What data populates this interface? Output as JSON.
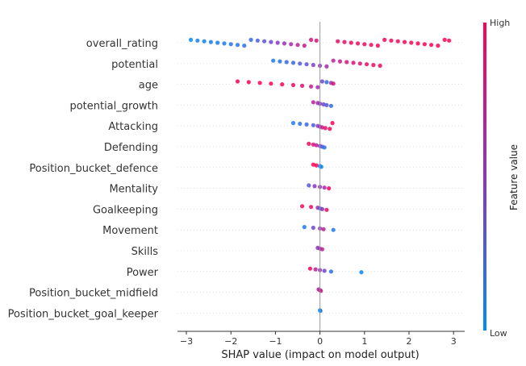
{
  "chart_data": {
    "type": "scatter",
    "subtype": "shap-beeswarm-summary",
    "xlabel": "SHAP value (impact on model output)",
    "xlim": [
      -3.2,
      3.25
    ],
    "xticks": [
      -3,
      -2,
      -1,
      0,
      1,
      2,
      3
    ],
    "colorbar": {
      "title": "Feature value",
      "high_label": "High",
      "low_label": "Low",
      "high_color": "#ff0052",
      "low_color": "#008bfb"
    },
    "features": [
      {
        "name": "overall_rating",
        "points": [
          [
            -2.9,
            0.0
          ],
          [
            -2.75,
            0.05
          ],
          [
            -2.6,
            0.05
          ],
          [
            -2.45,
            0.08
          ],
          [
            -2.3,
            0.08
          ],
          [
            -2.15,
            0.1
          ],
          [
            -2.0,
            0.12
          ],
          [
            -1.85,
            0.12
          ],
          [
            -1.7,
            0.15
          ],
          [
            -1.55,
            0.2
          ],
          [
            -1.4,
            0.25
          ],
          [
            -1.25,
            0.32
          ],
          [
            -1.1,
            0.4
          ],
          [
            -0.95,
            0.48
          ],
          [
            -0.8,
            0.55
          ],
          [
            -0.65,
            0.62
          ],
          [
            -0.5,
            0.68
          ],
          [
            -0.35,
            0.75
          ],
          [
            -0.2,
            0.8
          ],
          [
            -0.08,
            0.85
          ],
          [
            0.4,
            0.9
          ],
          [
            0.55,
            0.92
          ],
          [
            0.7,
            0.93
          ],
          [
            0.85,
            0.94
          ],
          [
            1.0,
            0.95
          ],
          [
            1.15,
            0.95
          ],
          [
            1.3,
            0.96
          ],
          [
            1.45,
            0.96
          ],
          [
            1.6,
            0.97
          ],
          [
            1.75,
            0.97
          ],
          [
            1.9,
            0.98
          ],
          [
            2.05,
            0.98
          ],
          [
            2.2,
            0.98
          ],
          [
            2.35,
            0.99
          ],
          [
            2.5,
            0.99
          ],
          [
            2.65,
            0.99
          ],
          [
            2.8,
            1.0
          ],
          [
            2.9,
            1.0
          ]
        ]
      },
      {
        "name": "potential",
        "points": [
          [
            -1.05,
            0.1
          ],
          [
            -0.9,
            0.15
          ],
          [
            -0.75,
            0.18
          ],
          [
            -0.6,
            0.22
          ],
          [
            -0.45,
            0.28
          ],
          [
            -0.3,
            0.35
          ],
          [
            -0.15,
            0.42
          ],
          [
            0.0,
            0.5
          ],
          [
            0.15,
            0.6
          ],
          [
            0.3,
            0.68
          ],
          [
            0.45,
            0.75
          ],
          [
            0.6,
            0.8
          ],
          [
            0.75,
            0.85
          ],
          [
            0.9,
            0.88
          ],
          [
            1.05,
            0.9
          ],
          [
            1.2,
            0.93
          ],
          [
            1.35,
            0.95
          ]
        ]
      },
      {
        "name": "age",
        "points": [
          [
            -1.85,
            1.0
          ],
          [
            -1.6,
            1.0
          ],
          [
            -1.35,
            1.0
          ],
          [
            -1.1,
            0.98
          ],
          [
            -0.85,
            0.96
          ],
          [
            -0.6,
            0.92
          ],
          [
            -0.4,
            0.85
          ],
          [
            -0.2,
            0.75
          ],
          [
            -0.05,
            0.6
          ],
          [
            0.05,
            0.4
          ],
          [
            0.15,
            0.2
          ],
          [
            0.25,
            0.5
          ],
          [
            0.3,
            0.85
          ]
        ]
      },
      {
        "name": "potential_growth",
        "points": [
          [
            -0.15,
            0.7
          ],
          [
            -0.05,
            0.6
          ],
          [
            0.0,
            0.5
          ],
          [
            0.08,
            0.4
          ],
          [
            0.15,
            0.3
          ],
          [
            0.25,
            0.2
          ]
        ]
      },
      {
        "name": "Attacking",
        "points": [
          [
            -0.6,
            0.1
          ],
          [
            -0.45,
            0.15
          ],
          [
            -0.3,
            0.2
          ],
          [
            -0.15,
            0.3
          ],
          [
            -0.05,
            0.45
          ],
          [
            0.0,
            0.6
          ],
          [
            0.05,
            0.75
          ],
          [
            0.12,
            0.88
          ],
          [
            0.22,
            0.95
          ],
          [
            0.28,
            0.98
          ]
        ]
      },
      {
        "name": "Defending",
        "points": [
          [
            -0.25,
            0.95
          ],
          [
            -0.15,
            0.85
          ],
          [
            -0.08,
            0.7
          ],
          [
            0.0,
            0.5
          ],
          [
            0.05,
            0.3
          ],
          [
            0.1,
            0.15
          ]
        ]
      },
      {
        "name": "Position_bucket_defence",
        "points": [
          [
            -0.15,
            1.0
          ],
          [
            -0.08,
            1.0
          ],
          [
            0.0,
            0.0
          ],
          [
            0.03,
            0.0
          ]
        ]
      },
      {
        "name": "Mentality",
        "points": [
          [
            -0.25,
            0.3
          ],
          [
            -0.12,
            0.5
          ],
          [
            0.0,
            0.55
          ],
          [
            0.1,
            0.6
          ],
          [
            0.2,
            0.95
          ]
        ]
      },
      {
        "name": "Goalkeeping",
        "points": [
          [
            -0.4,
            0.95
          ],
          [
            -0.2,
            0.9
          ],
          [
            -0.05,
            0.6
          ],
          [
            0.0,
            0.2
          ],
          [
            0.05,
            0.5
          ],
          [
            0.15,
            0.9
          ]
        ]
      },
      {
        "name": "Movement",
        "points": [
          [
            -0.35,
            0.1
          ],
          [
            -0.15,
            0.4
          ],
          [
            0.0,
            0.55
          ],
          [
            0.08,
            0.7
          ],
          [
            0.3,
            0.1
          ]
        ]
      },
      {
        "name": "Skills",
        "points": [
          [
            -0.05,
            0.5
          ],
          [
            0.0,
            0.6
          ],
          [
            0.05,
            0.7
          ]
        ]
      },
      {
        "name": "Power",
        "points": [
          [
            -0.22,
            0.95
          ],
          [
            -0.1,
            0.7
          ],
          [
            0.0,
            0.55
          ],
          [
            0.1,
            0.4
          ],
          [
            0.25,
            0.15
          ],
          [
            0.93,
            0.05
          ]
        ]
      },
      {
        "name": "Position_bucket_midfield",
        "points": [
          [
            -0.03,
            0.7
          ],
          [
            0.0,
            0.6
          ],
          [
            0.02,
            0.8
          ]
        ]
      },
      {
        "name": "Position_bucket_goal_keeper",
        "points": [
          [
            0.0,
            0.0
          ],
          [
            0.01,
            0.05
          ]
        ]
      }
    ]
  }
}
